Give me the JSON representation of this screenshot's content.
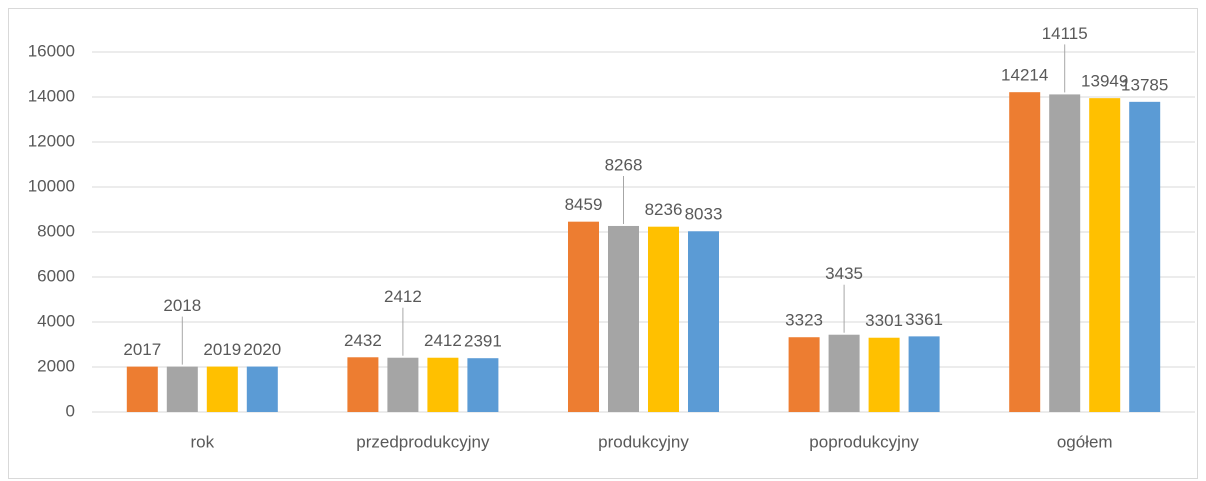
{
  "chart_data": {
    "type": "bar",
    "categories": [
      "rok",
      "przedprodukcyjny",
      "produkcyjny",
      "poprodukcyjny",
      "ogółem"
    ],
    "series": [
      {
        "color": "#ED7D31",
        "values": [
          2017,
          2432,
          8459,
          3323,
          14214
        ]
      },
      {
        "color": "#A5A5A5",
        "values": [
          2018,
          2412,
          8268,
          3435,
          14115
        ]
      },
      {
        "color": "#FFC000",
        "values": [
          2019,
          2412,
          8236,
          3301,
          13949
        ]
      },
      {
        "color": "#5B9BD5",
        "values": [
          2020,
          2391,
          8033,
          3361,
          13785
        ]
      }
    ],
    "ylim": [
      0,
      16000
    ],
    "yticks": [
      0,
      2000,
      4000,
      6000,
      8000,
      10000,
      12000,
      14000,
      16000
    ],
    "grid": true
  }
}
